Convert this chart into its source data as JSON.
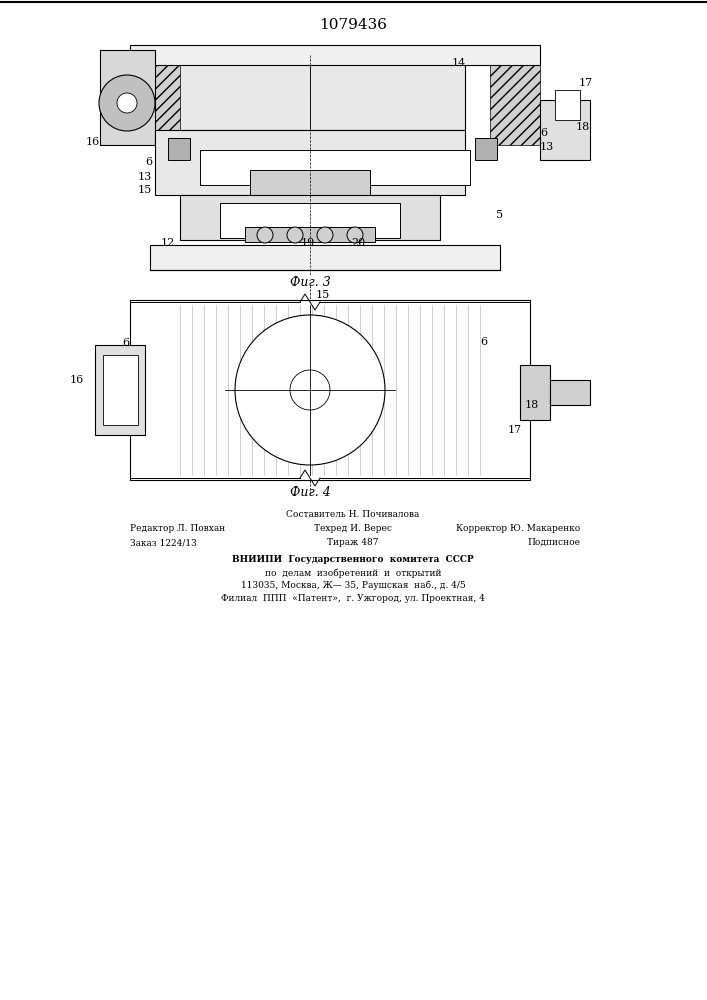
{
  "title": "1079436",
  "fig3_label": "Фиг. 3",
  "fig4_label": "Фиг. 4",
  "footer_line1_left": "Редактор Л. Повхан",
  "footer_line1_center": "Составитель Н. Почивалова",
  "footer_line1_right": "Корректор Ю. Макаренко",
  "footer_line2_left": "Заказ 1224/13",
  "footer_line2_center": "Тираж 487",
  "footer_line2_right": "Подписное",
  "footer_line3_center": "Техред И. Верес",
  "vniiipi_line1": "ВНИИПИ  Государственного  комитета  СССР",
  "vniiipi_line2": "по  делам  изобретений  и  открытий",
  "vniiipi_line3": "113035, Москва, Ж— 35, Раушская  наб., д. 4/5",
  "vniiipi_line4": "Филиал  ППП  «Патент»,  г. Ужгород, ул. Проектная, 4",
  "bg_color": "#ffffff",
  "line_color": "#000000",
  "hatch_color": "#000000"
}
